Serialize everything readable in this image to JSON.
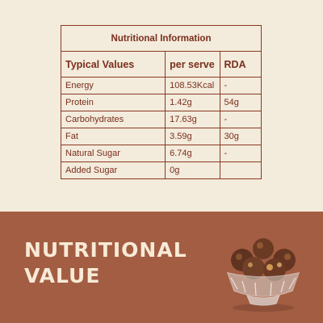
{
  "table": {
    "title": "Nutritional Information",
    "headers": [
      "Typical Values",
      "per serve",
      "RDA"
    ],
    "rows": [
      [
        "Energy",
        "108.53Kcal",
        "-"
      ],
      [
        "Protein",
        "1.42g",
        "54g"
      ],
      [
        "Carbohydrates",
        "17.63g",
        "-"
      ],
      [
        "Fat",
        "3.59g",
        "30g"
      ],
      [
        "Natural Sugar",
        "6.74g",
        "-"
      ],
      [
        "Added Sugar",
        "0g",
        ""
      ]
    ]
  },
  "headline": {
    "line1": "NUTRITIONAL",
    "line2": "VALUE"
  },
  "colors": {
    "background": "#f3ebdc",
    "accent": "#7a2e1c",
    "banner": "#a35d43",
    "headline_text": "#f7ead6"
  },
  "image": {
    "icon": "bowl-of-laddoos-icon"
  }
}
